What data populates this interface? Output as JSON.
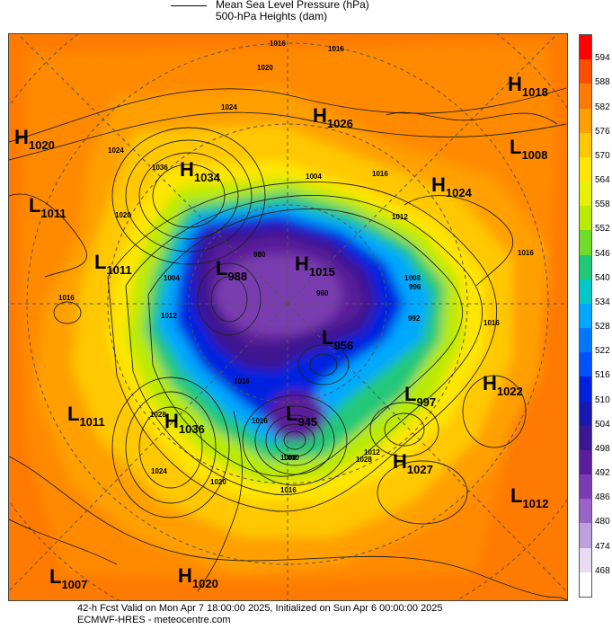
{
  "legend": {
    "mslp": "Mean Sea Level Pressure (hPa)",
    "heights": "500-hPa Heights (dam)"
  },
  "colorbar": {
    "labels": [
      "594",
      "588",
      "582",
      "576",
      "570",
      "564",
      "558",
      "552",
      "546",
      "540",
      "534",
      "528",
      "522",
      "516",
      "510",
      "504",
      "498",
      "492",
      "486",
      "480",
      "474",
      "468"
    ],
    "colors": [
      "#ff0000",
      "#ff4e00",
      "#ff7a00",
      "#ffa000",
      "#ffc800",
      "#ffe600",
      "#e6f000",
      "#b9ea00",
      "#6fdc2a",
      "#20c878",
      "#00c8c8",
      "#00a8ff",
      "#0078ff",
      "#0050ff",
      "#0020e0",
      "#1818b0",
      "#3c1890",
      "#5a1e9a",
      "#7a3cb0",
      "#9a64c4",
      "#c0a0dc",
      "#e8dcf2",
      "#ffffff"
    ]
  },
  "systems": [
    {
      "name": "h-1018",
      "letter": "H",
      "value": "1018"
    },
    {
      "name": "h-1026",
      "letter": "H",
      "value": "1026"
    },
    {
      "name": "h-1020-west",
      "letter": "H",
      "value": "1020"
    },
    {
      "name": "l-1008",
      "letter": "L",
      "value": "1008"
    },
    {
      "name": "h-1034",
      "letter": "H",
      "value": "1034"
    },
    {
      "name": "h-1024",
      "letter": "H",
      "value": "1024"
    },
    {
      "name": "l-1011-a",
      "letter": "L",
      "value": "1011"
    },
    {
      "name": "l-1011-b",
      "letter": "L",
      "value": "1011"
    },
    {
      "name": "l-988",
      "letter": "L",
      "value": "988"
    },
    {
      "name": "h-1015",
      "letter": "H",
      "value": "1015"
    },
    {
      "name": "l-956",
      "letter": "L",
      "value": "956"
    },
    {
      "name": "h-1022",
      "letter": "H",
      "value": "1022"
    },
    {
      "name": "l-997",
      "letter": "L",
      "value": "997"
    },
    {
      "name": "l-1011-c",
      "letter": "L",
      "value": "1011"
    },
    {
      "name": "h-1036",
      "letter": "H",
      "value": "1036"
    },
    {
      "name": "l-945",
      "letter": "L",
      "value": "945"
    },
    {
      "name": "h-1027",
      "letter": "H",
      "value": "1027"
    },
    {
      "name": "l-1012",
      "letter": "L",
      "value": "1012"
    },
    {
      "name": "l-1007",
      "letter": "L",
      "value": "1007"
    },
    {
      "name": "h-1020-south",
      "letter": "H",
      "value": "1020"
    }
  ],
  "isobar_labels": [
    "1016",
    "1016",
    "1020",
    "1024",
    "1004",
    "1016",
    "1036",
    "1028",
    "1000",
    "1016",
    "1004",
    "1012",
    "1008",
    "996",
    "992",
    "1016",
    "1016",
    "1012",
    "1000",
    "1024",
    "1028",
    "1016",
    "1020",
    "1024",
    "1012",
    "1020",
    "1016",
    "1016",
    "980",
    "960"
  ],
  "footer": {
    "line1": "42-h Fcst Valid on Mon Apr  7 18:00:00 2025, Initialized on Sun Apr  6 00:00:00 2025",
    "line2": "ECMWF-HRES - meteocentre.com"
  }
}
